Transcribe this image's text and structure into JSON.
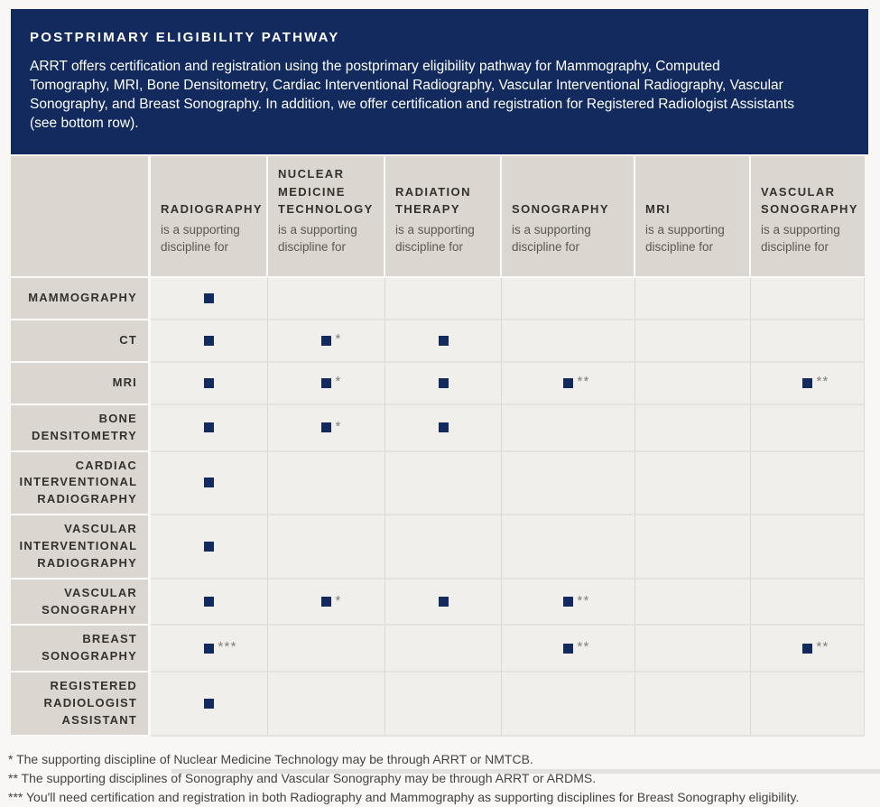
{
  "colors": {
    "accent_navy": "#122a5e",
    "header_beige": "#dbd7d0",
    "cell_background": "#f1efeb"
  },
  "banner": {
    "title": "POSTPRIMARY ELIGIBILITY PATHWAY",
    "description": "ARRT offers certification and registration using the postprimary eligibility pathway for Mammography, Computed Tomography, MRI, Bone Densitometry, Cardiac Interventional Radiography, Vascular Interventional Radiography, Vascular Sonography, and Breast Sonography. In addition, we offer certification and registration for Registered Radiologist Assistants (see bottom row)."
  },
  "table": {
    "columns": [
      {
        "name": "RADIOGRAPHY",
        "subtitle": "is a supporting discipline for"
      },
      {
        "name": "NUCLEAR MEDICINE TECHNOLOGY",
        "subtitle": "is a supporting discipline for"
      },
      {
        "name": "RADIATION THERAPY",
        "subtitle": "is a supporting discipline for"
      },
      {
        "name": "SONOGRAPHY",
        "subtitle": "is a supporting discipline for"
      },
      {
        "name": "MRI",
        "subtitle": "is a supporting discipline for"
      },
      {
        "name": "VASCULAR SONOGRAPHY",
        "subtitle": "is a supporting discipline for"
      }
    ],
    "rows": [
      {
        "label": "MAMMOGRAPHY",
        "cells": [
          {
            "marked": true,
            "asterisks": ""
          },
          {
            "marked": false
          },
          {
            "marked": false
          },
          {
            "marked": false
          },
          {
            "marked": false
          },
          {
            "marked": false
          }
        ]
      },
      {
        "label": "CT",
        "cells": [
          {
            "marked": true,
            "asterisks": ""
          },
          {
            "marked": true,
            "asterisks": "*"
          },
          {
            "marked": true,
            "asterisks": ""
          },
          {
            "marked": false
          },
          {
            "marked": false
          },
          {
            "marked": false
          }
        ]
      },
      {
        "label": "MRI",
        "cells": [
          {
            "marked": true,
            "asterisks": ""
          },
          {
            "marked": true,
            "asterisks": "*"
          },
          {
            "marked": true,
            "asterisks": ""
          },
          {
            "marked": true,
            "asterisks": "**"
          },
          {
            "marked": false
          },
          {
            "marked": true,
            "asterisks": "**"
          }
        ]
      },
      {
        "label": "BONE DENSITOMETRY",
        "cells": [
          {
            "marked": true,
            "asterisks": ""
          },
          {
            "marked": true,
            "asterisks": "*"
          },
          {
            "marked": true,
            "asterisks": ""
          },
          {
            "marked": false
          },
          {
            "marked": false
          },
          {
            "marked": false
          }
        ]
      },
      {
        "label": "CARDIAC INTERVENTIONAL RADIOGRAPHY",
        "cells": [
          {
            "marked": true,
            "asterisks": ""
          },
          {
            "marked": false
          },
          {
            "marked": false
          },
          {
            "marked": false
          },
          {
            "marked": false
          },
          {
            "marked": false
          }
        ]
      },
      {
        "label": "VASCULAR INTERVENTIONAL RADIOGRAPHY",
        "cells": [
          {
            "marked": true,
            "asterisks": ""
          },
          {
            "marked": false
          },
          {
            "marked": false
          },
          {
            "marked": false
          },
          {
            "marked": false
          },
          {
            "marked": false
          }
        ]
      },
      {
        "label": "VASCULAR SONOGRAPHY",
        "cells": [
          {
            "marked": true,
            "asterisks": ""
          },
          {
            "marked": true,
            "asterisks": "*"
          },
          {
            "marked": true,
            "asterisks": ""
          },
          {
            "marked": true,
            "asterisks": "**"
          },
          {
            "marked": false
          },
          {
            "marked": false
          }
        ]
      },
      {
        "label": "BREAST SONOGRAPHY",
        "cells": [
          {
            "marked": true,
            "asterisks": "***"
          },
          {
            "marked": false
          },
          {
            "marked": false
          },
          {
            "marked": true,
            "asterisks": "**"
          },
          {
            "marked": false
          },
          {
            "marked": true,
            "asterisks": "**"
          }
        ]
      },
      {
        "label": "REGISTERED RADIOLOGIST ASSISTANT",
        "cells": [
          {
            "marked": true,
            "asterisks": ""
          },
          {
            "marked": false
          },
          {
            "marked": false
          },
          {
            "marked": false
          },
          {
            "marked": false
          },
          {
            "marked": false
          }
        ]
      }
    ]
  },
  "footnotes": [
    "* The supporting discipline of Nuclear Medicine Technology may be through ARRT or NMTCB.",
    "** The supporting disciplines of Sonography and Vascular Sonography may be through ARRT or ARDMS.",
    "*** You'll need certification and registration in both Radiography and Mammography as supporting disciplines for Breast Sonography eligibility."
  ]
}
